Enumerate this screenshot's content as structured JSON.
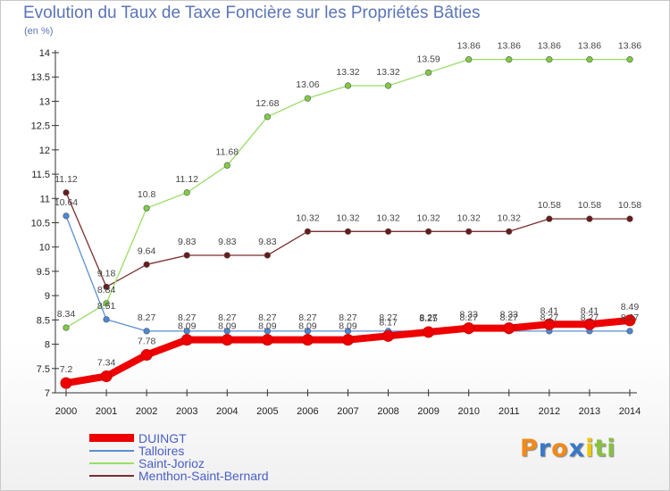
{
  "title": "Evolution du Taux de Taxe Foncière sur les Propriétés Bâties",
  "subtitle": "(en %)",
  "logo": {
    "letters": [
      "P",
      "r",
      "o",
      "x",
      "i",
      "t",
      "i"
    ],
    "colors": [
      "#f08a1a",
      "#3a78c8",
      "#f08a1a",
      "#3a78c8",
      "#f0c800",
      "#88c040",
      "#88c040"
    ]
  },
  "chart_data": {
    "type": "line",
    "x": [
      "2000",
      "2001",
      "2002",
      "2003",
      "2004",
      "2005",
      "2006",
      "2007",
      "2008",
      "2009",
      "2010",
      "2011",
      "2012",
      "2013",
      "2014"
    ],
    "ylim": [
      7,
      14
    ],
    "yticks": [
      "7",
      "7.5",
      "8",
      "8.5",
      "9",
      "9.5",
      "10",
      "10.5",
      "11",
      "11.5",
      "12",
      "12.5",
      "13",
      "13.5",
      "14"
    ],
    "grid": false,
    "legend_position": "bottom-left",
    "series": [
      {
        "name": "DUINGT",
        "color": "#ee0000",
        "marker_fill": "#ee0000",
        "values": [
          7.2,
          7.34,
          7.78,
          8.09,
          8.09,
          8.09,
          8.09,
          8.09,
          8.17,
          8.25,
          8.33,
          8.33,
          8.41,
          8.41,
          8.49
        ],
        "labels": [
          "7.2",
          "7.34",
          "7.78",
          "8.09",
          "8.09",
          "8.09",
          "8.09",
          "8.09",
          "8.17",
          "8.25",
          "8.33",
          "8.33",
          "8.41",
          "8.41",
          "8.49"
        ]
      },
      {
        "name": "Talloires",
        "color": "#5b8fd0",
        "marker_fill": "#4a88d8",
        "values": [
          10.64,
          8.51,
          8.27,
          8.27,
          8.27,
          8.27,
          8.27,
          8.27,
          8.27,
          8.27,
          8.27,
          8.27,
          8.27,
          8.27,
          8.27
        ],
        "labels": [
          "10.64",
          "8.51",
          "8.27",
          "8.27",
          "8.27",
          "8.27",
          "8.27",
          "8.27",
          "8.27",
          "8.27",
          "8.27",
          "8.27",
          "8.27",
          "8.27",
          "8.27"
        ]
      },
      {
        "name": "Saint-Jorioz",
        "color": "#99dd66",
        "marker_fill": "#7fcc44",
        "values": [
          8.34,
          8.84,
          10.8,
          11.12,
          11.68,
          12.68,
          13.06,
          13.32,
          13.32,
          13.59,
          13.86,
          13.86,
          13.86,
          13.86,
          13.86
        ],
        "labels": [
          "8.34",
          "8.84",
          "10.8",
          "11.12",
          "11.68",
          "12.68",
          "13.06",
          "13.32",
          "13.32",
          "13.59",
          "13.86",
          "13.86",
          "13.86",
          "13.86",
          "13.86"
        ]
      },
      {
        "name": "Menthon-Saint-Bernard",
        "color": "#7a2e2e",
        "marker_fill": "#6a1a1a",
        "values": [
          11.12,
          9.18,
          9.64,
          9.83,
          9.83,
          9.83,
          10.32,
          10.32,
          10.32,
          10.32,
          10.32,
          10.32,
          10.58,
          10.58,
          10.58
        ],
        "labels": [
          "11.12",
          "9.18",
          "9.64",
          "9.83",
          "9.83",
          "9.83",
          "10.32",
          "10.32",
          "10.32",
          "10.32",
          "10.32",
          "10.32",
          "10.58",
          "10.58",
          "10.58"
        ]
      }
    ]
  }
}
